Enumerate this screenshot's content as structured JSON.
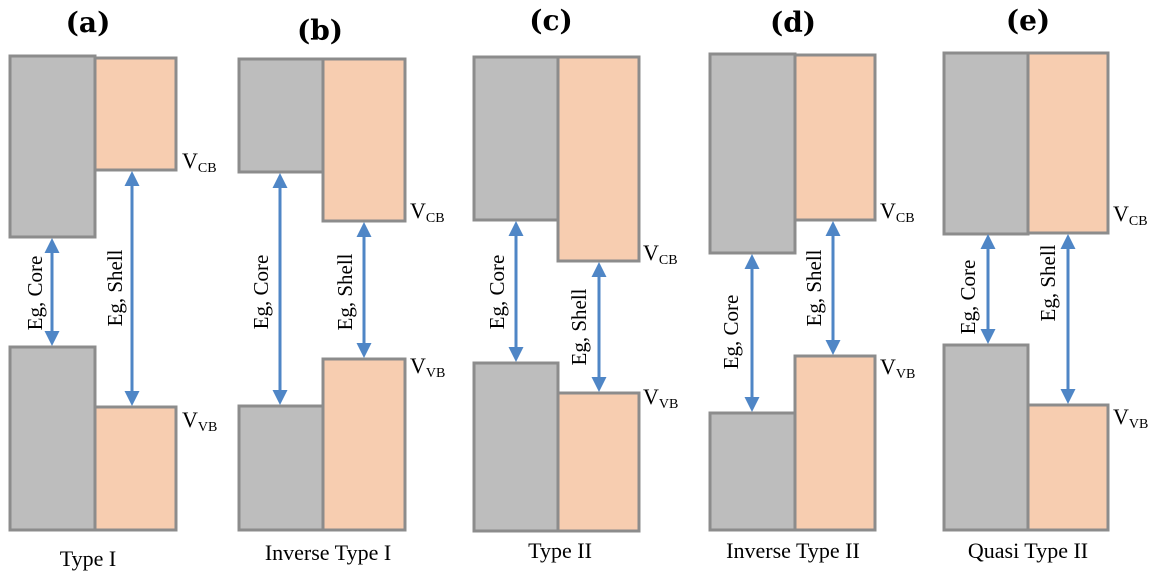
{
  "colors": {
    "core": "#bdbdbd",
    "shell": "#f7cdb0",
    "border": "#8c8c8c",
    "arrow": "#4f86c6"
  },
  "labels": {
    "cb_main": "V",
    "cb_sub": "CB",
    "vb_main": "V",
    "vb_sub": "VB",
    "core_gap": "Eg, Core",
    "shell_gap": "Eg, Shell"
  },
  "panels": [
    {
      "letter": "(a)",
      "caption": "Type I"
    },
    {
      "letter": "(b)",
      "caption": "Inverse Type I"
    },
    {
      "letter": "(c)",
      "caption": "Type II"
    },
    {
      "letter": "(d)",
      "caption": "Inverse Type II"
    },
    {
      "letter": "(e)",
      "caption": "Quasi Type II"
    }
  ]
}
